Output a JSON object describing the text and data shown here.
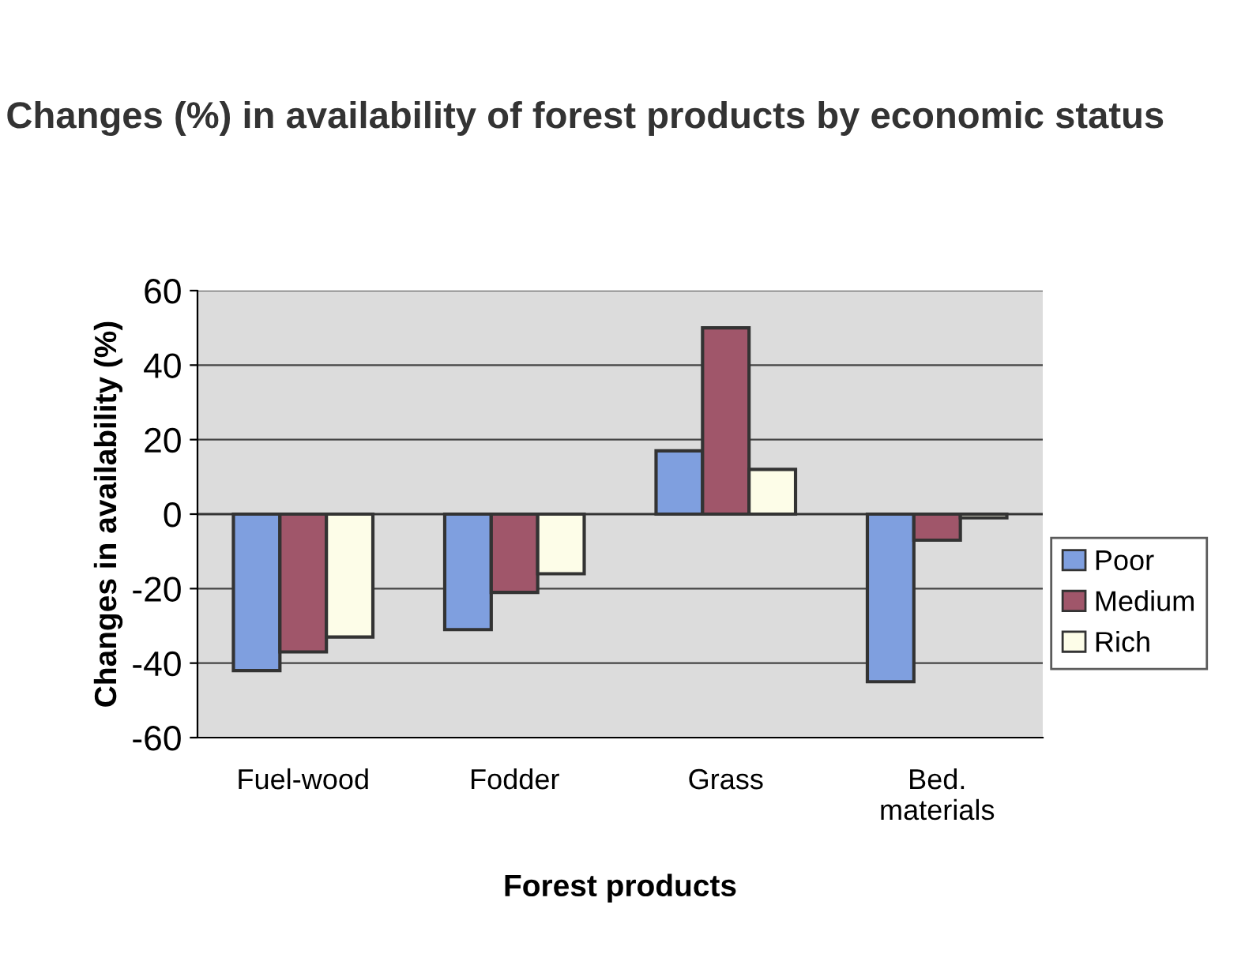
{
  "chart_data": {
    "type": "bar",
    "title": "Changes (%) in availability of forest products by economic status",
    "xlabel": "Forest products",
    "ylabel": "Changes in availability (%)",
    "categories": [
      "Fuel-wood",
      "Fodder",
      "Grass",
      "Bed.\nmaterials"
    ],
    "series": [
      {
        "name": "Poor",
        "color": "#7f9fdf",
        "values": [
          -42,
          -31,
          17,
          -45
        ]
      },
      {
        "name": "Medium",
        "color": "#a0566a",
        "values": [
          -37,
          -21,
          50,
          -7
        ]
      },
      {
        "name": "Rich",
        "color": "#fdfde8",
        "values": [
          -33,
          -16,
          12,
          -1
        ]
      }
    ],
    "ylim": [
      -60,
      60
    ],
    "yticks": [
      -60,
      -40,
      -20,
      0,
      20,
      40,
      60
    ],
    "grid": "y",
    "legend": "right"
  }
}
